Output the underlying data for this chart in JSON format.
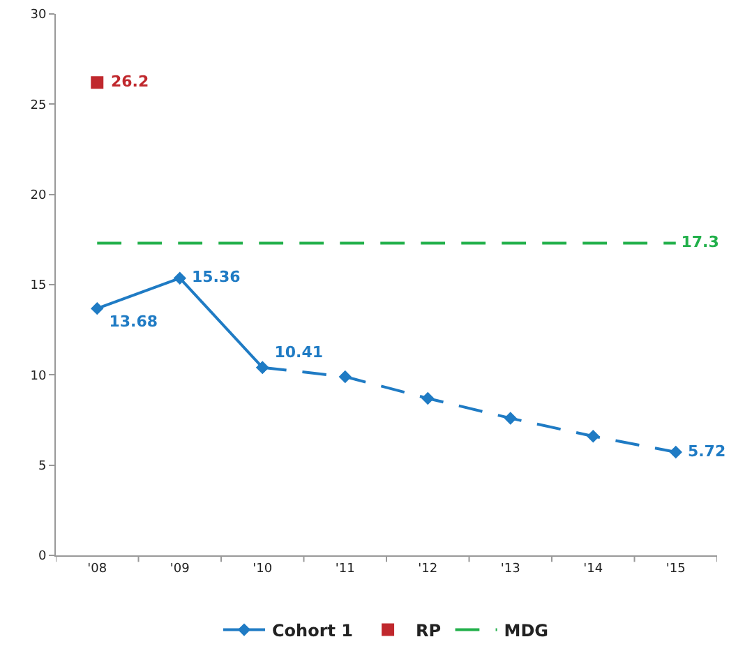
{
  "chart_data": {
    "type": "line",
    "categories": [
      "'08",
      "'09",
      "'10",
      "'11",
      "'12",
      "'13",
      "'14",
      "'15"
    ],
    "series": [
      {
        "name": "Cohort 1",
        "color": "#1f7bc4",
        "marker": "diamond",
        "line_style": "solid",
        "values": [
          13.68,
          15.36,
          10.41,
          null,
          null,
          null,
          null,
          null
        ],
        "value_labels": [
          "13.68",
          "15.36",
          "10.41",
          null,
          null,
          null,
          null,
          null
        ]
      },
      {
        "color": "#1f7bc4",
        "marker": "diamond",
        "line_style": "dashed",
        "values": [
          null,
          null,
          10.41,
          9.9,
          8.7,
          7.6,
          6.6,
          5.72
        ],
        "value_labels": [
          null,
          null,
          null,
          null,
          null,
          null,
          null,
          "5.72"
        ]
      },
      {
        "name": "RP",
        "type": "scatter",
        "color": "#c0282d",
        "marker": "square",
        "values": [
          26.2,
          null,
          null,
          null,
          null,
          null,
          null,
          null
        ],
        "value_labels": [
          "26.2",
          null,
          null,
          null,
          null,
          null,
          null,
          null
        ]
      },
      {
        "name": "MDG",
        "color": "#22b04b",
        "marker": "none",
        "line_style": "dashed",
        "values": [
          17.3,
          17.3,
          17.3,
          17.3,
          17.3,
          17.3,
          17.3,
          17.3
        ],
        "value_labels": [
          null,
          null,
          null,
          null,
          null,
          null,
          null,
          "17.3"
        ]
      }
    ],
    "ylim": [
      0,
      30
    ],
    "yticks": [
      0,
      5,
      10,
      15,
      20,
      25,
      30
    ],
    "grid": false,
    "legend": "bottom"
  }
}
